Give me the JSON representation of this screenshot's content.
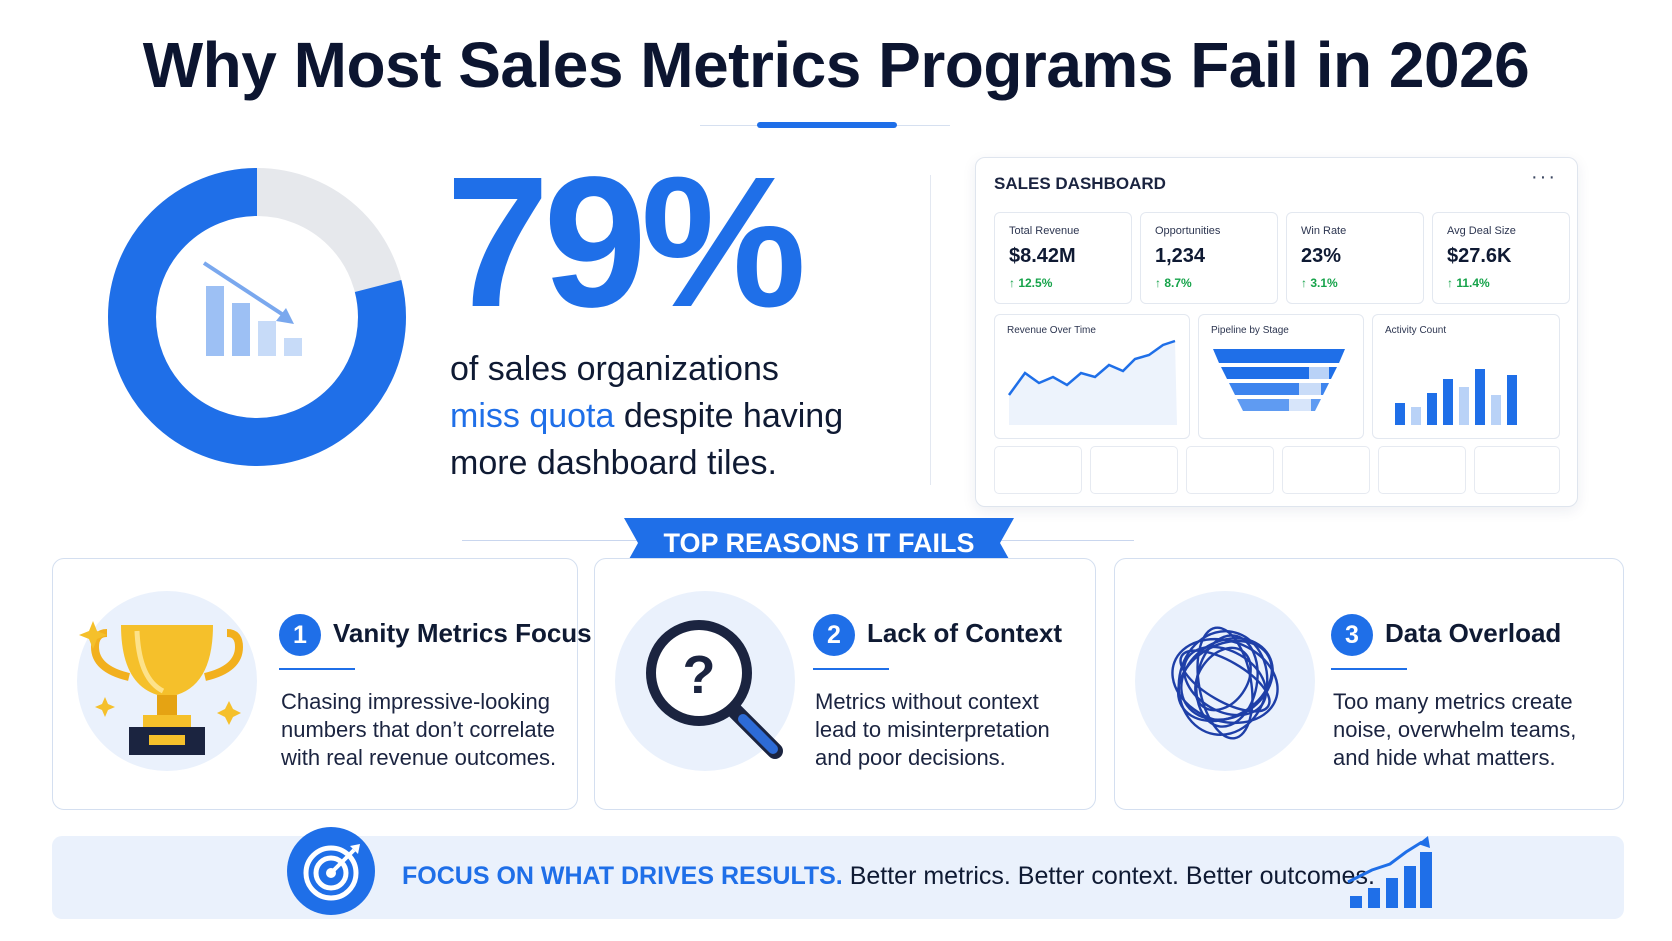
{
  "header": {
    "title": "Why Most Sales Metrics Programs Fail in 2026"
  },
  "hero": {
    "stat": "79%",
    "stat_value": 79,
    "line1": "of sales organizations",
    "highlight": "miss quota",
    "line2_rest": " despite having",
    "line3": "more dashboard tiles."
  },
  "dashboard": {
    "title": "SALES DASHBOARD",
    "menu": "···",
    "kpis": [
      {
        "label": "Total Revenue",
        "value": "$8.42M",
        "delta": "↑ 12.5%"
      },
      {
        "label": "Opportunities",
        "value": "1,234",
        "delta": "↑ 8.7%"
      },
      {
        "label": "Win Rate",
        "value": "23%",
        "delta": "↑ 3.1%"
      },
      {
        "label": "Avg Deal Size",
        "value": "$27.6K",
        "delta": "↑ 11.4%"
      }
    ],
    "panels": [
      {
        "label": "Revenue Over Time"
      },
      {
        "label": "Pipeline by Stage"
      },
      {
        "label": "Activity Count"
      }
    ]
  },
  "section": {
    "heading": "TOP REASONS IT FAILS"
  },
  "reasons": [
    {
      "num": "1",
      "title": "Vanity Metrics Focus",
      "desc": "Chasing impressive-looking numbers that don’t correlate with real revenue outcomes.",
      "icon": "trophy-icon"
    },
    {
      "num": "2",
      "title": "Lack of Context",
      "desc": "Metrics without context lead to misinterpretation and poor decisions.",
      "icon": "magnifier-question-icon"
    },
    {
      "num": "3",
      "title": "Data Overload",
      "desc": "Too many metrics create noise, overwhelm teams, and hide what matters.",
      "icon": "tangle-icon"
    }
  ],
  "footer": {
    "strong": "FOCUS ON WHAT DRIVES RESULTS.",
    "rest": " Better metrics. Better context. Better outcomes."
  },
  "colors": {
    "accent": "#1f6fe8",
    "dark": "#0c1530",
    "positive": "#16a34a",
    "soft": "#eaf1fc"
  }
}
